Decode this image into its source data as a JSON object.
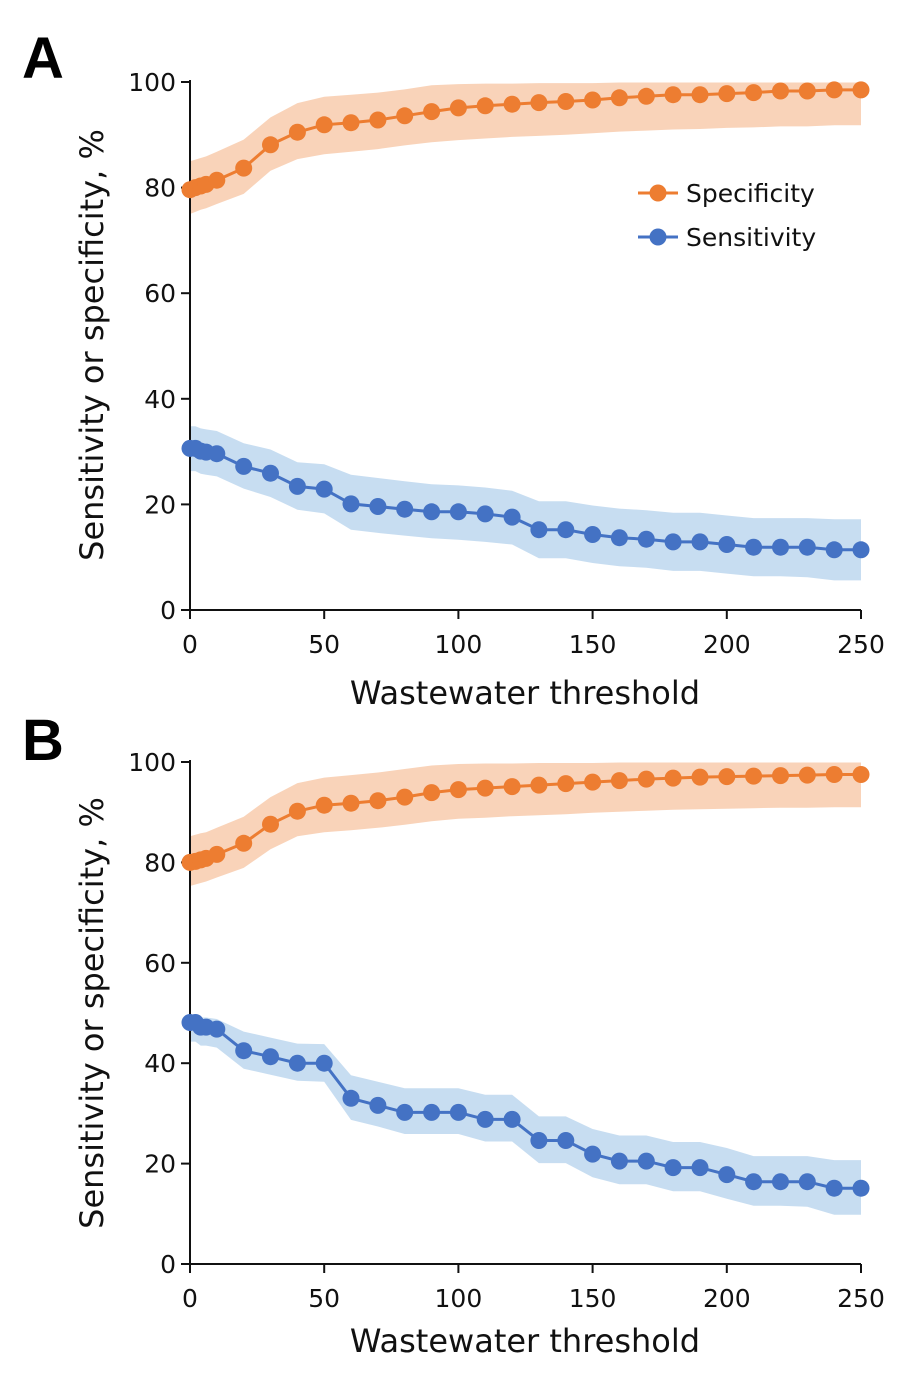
{
  "colors": {
    "specificity": "#ED7D31",
    "sensitivity": "#4472C4",
    "specificity_band": "#F8CBAD",
    "sensitivity_band": "#BDD7EE",
    "axis": "#111111"
  },
  "chart_data": [
    {
      "type": "line",
      "panel_label": "A",
      "xlabel": "Wastewater threshold",
      "ylabel": "Sensitivity or specificity, %",
      "xlim": [
        0,
        250
      ],
      "ylim": [
        0,
        100
      ],
      "xticks": [
        0,
        50,
        100,
        150,
        200,
        250
      ],
      "yticks": [
        0,
        20,
        40,
        60,
        80,
        100
      ],
      "grid": false,
      "legend": {
        "placement": "top-right",
        "entries": [
          "Specificity",
          "Sensitivity"
        ]
      },
      "x": [
        0,
        2,
        4,
        6,
        10,
        20,
        30,
        40,
        50,
        60,
        70,
        80,
        90,
        100,
        110,
        120,
        130,
        140,
        150,
        160,
        170,
        180,
        190,
        200,
        210,
        220,
        230,
        240,
        250
      ],
      "series": [
        {
          "name": "Specificity",
          "values": [
            79.6,
            80.0,
            80.3,
            80.6,
            81.4,
            83.7,
            88.1,
            90.5,
            91.9,
            92.3,
            92.8,
            93.6,
            94.4,
            95.1,
            95.5,
            95.8,
            96.1,
            96.3,
            96.6,
            97.0,
            97.3,
            97.6,
            97.6,
            97.8,
            98.0,
            98.3,
            98.3,
            98.5,
            98.5
          ],
          "ci_lower": [
            75.0,
            75.4,
            75.8,
            76.1,
            76.9,
            78.8,
            83.2,
            85.4,
            86.3,
            86.8,
            87.3,
            88.0,
            88.6,
            89.0,
            89.3,
            89.6,
            89.8,
            90.0,
            90.3,
            90.6,
            90.8,
            91.0,
            91.1,
            91.3,
            91.4,
            91.6,
            91.6,
            91.8,
            91.8
          ],
          "ci_upper": [
            85.0,
            85.3,
            85.6,
            85.9,
            86.8,
            89.1,
            93.3,
            96.0,
            97.2,
            97.6,
            98.0,
            98.6,
            99.4,
            99.6,
            99.7,
            99.7,
            99.8,
            99.8,
            99.8,
            99.9,
            99.9,
            99.9,
            99.9,
            99.9,
            99.9,
            99.9,
            99.9,
            99.9,
            99.9
          ]
        },
        {
          "name": "Sensitivity",
          "values": [
            30.6,
            30.6,
            30.1,
            29.9,
            29.6,
            27.2,
            25.9,
            23.4,
            22.9,
            20.1,
            19.6,
            19.1,
            18.6,
            18.6,
            18.2,
            17.6,
            15.2,
            15.2,
            14.3,
            13.7,
            13.4,
            12.9,
            12.9,
            12.4,
            11.9,
            11.9,
            11.9,
            11.4,
            11.4
          ],
          "ci_lower": [
            26.3,
            26.3,
            25.8,
            25.6,
            25.3,
            23.0,
            21.4,
            19.0,
            18.3,
            15.2,
            14.6,
            14.1,
            13.6,
            13.3,
            12.9,
            12.4,
            9.8,
            9.8,
            8.9,
            8.3,
            8.0,
            7.4,
            7.4,
            6.9,
            6.4,
            6.4,
            6.2,
            5.6,
            5.6
          ],
          "ci_upper": [
            34.8,
            34.8,
            34.4,
            34.2,
            33.9,
            31.6,
            30.4,
            28.0,
            27.6,
            25.6,
            25.0,
            24.4,
            23.8,
            23.6,
            23.2,
            22.6,
            20.6,
            20.6,
            19.8,
            19.2,
            18.9,
            18.4,
            18.4,
            17.9,
            17.4,
            17.4,
            17.4,
            17.2,
            17.2
          ]
        }
      ]
    },
    {
      "type": "line",
      "panel_label": "B",
      "xlabel": "Wastewater threshold",
      "ylabel": "Sensitivity or specificity, %",
      "xlim": [
        0,
        250
      ],
      "ylim": [
        0,
        100
      ],
      "xticks": [
        0,
        50,
        100,
        150,
        200,
        250
      ],
      "yticks": [
        0,
        20,
        40,
        60,
        80,
        100
      ],
      "grid": false,
      "x": [
        0,
        2,
        4,
        6,
        10,
        20,
        30,
        40,
        50,
        60,
        70,
        80,
        90,
        100,
        110,
        120,
        130,
        140,
        150,
        160,
        170,
        180,
        190,
        200,
        210,
        220,
        230,
        240,
        250
      ],
      "series": [
        {
          "name": "Specificity",
          "values": [
            80.0,
            80.2,
            80.5,
            80.8,
            81.6,
            83.8,
            87.6,
            90.2,
            91.4,
            91.8,
            92.3,
            93.0,
            93.9,
            94.5,
            94.8,
            95.1,
            95.4,
            95.7,
            96.0,
            96.3,
            96.6,
            96.8,
            97.0,
            97.1,
            97.2,
            97.3,
            97.4,
            97.5,
            97.5
          ],
          "ci_lower": [
            75.3,
            75.6,
            75.9,
            76.2,
            77.0,
            78.9,
            82.6,
            85.2,
            86.0,
            86.4,
            86.9,
            87.5,
            88.2,
            88.7,
            88.9,
            89.2,
            89.4,
            89.6,
            89.9,
            90.1,
            90.3,
            90.5,
            90.6,
            90.7,
            90.8,
            90.9,
            90.9,
            91.0,
            91.0
          ],
          "ci_upper": [
            85.2,
            85.5,
            85.8,
            86.0,
            86.9,
            89.1,
            93.0,
            95.8,
            96.9,
            97.4,
            97.9,
            98.6,
            99.3,
            99.6,
            99.7,
            99.7,
            99.8,
            99.8,
            99.8,
            99.9,
            99.9,
            99.9,
            99.9,
            99.9,
            99.9,
            99.9,
            99.9,
            99.9,
            99.9
          ]
        },
        {
          "name": "Sensitivity",
          "values": [
            48.1,
            48.1,
            47.2,
            47.2,
            46.8,
            42.5,
            41.3,
            40.0,
            40.0,
            33.0,
            31.6,
            30.2,
            30.2,
            30.2,
            28.8,
            28.8,
            24.6,
            24.6,
            21.9,
            20.5,
            20.5,
            19.2,
            19.2,
            17.8,
            16.4,
            16.4,
            16.4,
            15.1,
            15.1
          ],
          "ci_lower": [
            44.3,
            44.3,
            43.5,
            43.5,
            43.1,
            38.9,
            37.7,
            36.5,
            36.3,
            28.7,
            27.4,
            25.9,
            25.9,
            25.9,
            24.4,
            24.4,
            20.1,
            20.1,
            17.3,
            15.9,
            15.9,
            14.5,
            14.5,
            13.0,
            11.6,
            11.6,
            11.4,
            9.8,
            9.8
          ],
          "ci_upper": [
            49.5,
            49.5,
            49.1,
            49.1,
            48.8,
            46.3,
            45.1,
            43.9,
            43.8,
            37.6,
            36.3,
            35.0,
            35.0,
            35.0,
            33.7,
            33.7,
            29.4,
            29.4,
            26.9,
            25.6,
            25.6,
            24.3,
            24.3,
            23.1,
            21.5,
            21.5,
            21.5,
            20.7,
            20.7
          ]
        }
      ]
    }
  ]
}
